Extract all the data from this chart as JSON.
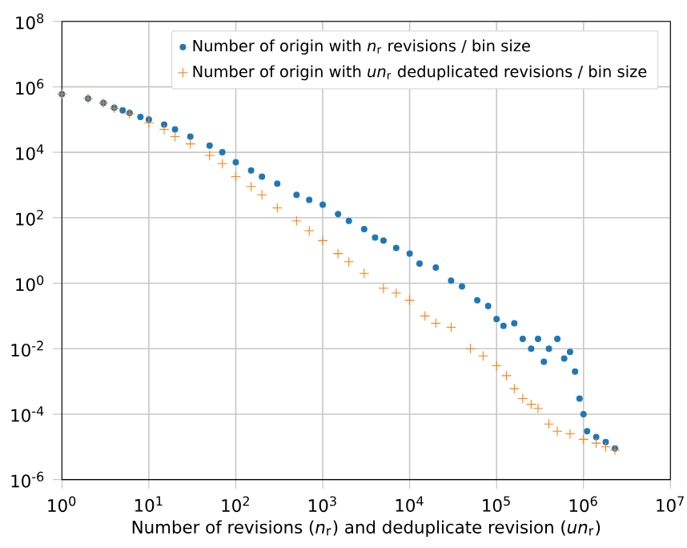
{
  "chart_data": {
    "type": "scatter",
    "log": "xy",
    "grid": true,
    "legend": "top right",
    "xlabel": "Number of revisions (*n*$_{r}$) and deduplicate revision (*un*$_{r}$)",
    "xlim": [
      1,
      10000000
    ],
    "ylim": [
      1e-06,
      100000000
    ],
    "xticks": [
      {
        "value": 1,
        "label": "10$^{0}$"
      },
      {
        "value": 10,
        "label": "10$^{1}$"
      },
      {
        "value": 100,
        "label": "10$^{2}$"
      },
      {
        "value": 1000,
        "label": "10$^{3}$"
      },
      {
        "value": 10000,
        "label": "10$^{4}$"
      },
      {
        "value": 100000,
        "label": "10$^{5}$"
      },
      {
        "value": 1000000,
        "label": "10$^{6}$"
      },
      {
        "value": 10000000,
        "label": "10$^{7}$"
      }
    ],
    "yticks": [
      {
        "value": 1e-06,
        "label": "10$^{-6}$"
      },
      {
        "value": 0.0001,
        "label": "10$^{-4}$"
      },
      {
        "value": 0.01,
        "label": "10$^{-2}$"
      },
      {
        "value": 1,
        "label": "10$^{0}$"
      },
      {
        "value": 100,
        "label": "10$^{2}$"
      },
      {
        "value": 10000,
        "label": "10$^{4}$"
      },
      {
        "value": 1000000,
        "label": "10$^{6}$"
      },
      {
        "value": 100000000,
        "label": "10$^{8}$"
      }
    ],
    "series": [
      {
        "name": "Number of origin with *n*$_{r}$ revisions / bin size",
        "color": "#1f77b4",
        "marker": "circle",
        "x": [
          1,
          2,
          3,
          4,
          5,
          6,
          8,
          10,
          15,
          20,
          30,
          50,
          70,
          100,
          150,
          200,
          300,
          500,
          700,
          1000,
          1500,
          2000,
          3000,
          4000,
          5000,
          7000,
          10000,
          13000,
          20000,
          30000,
          40000,
          60000,
          80000,
          100000,
          120000,
          160000,
          200000,
          250000,
          300000,
          350000,
          400000,
          500000,
          600000,
          700000,
          800000,
          900000,
          1000000,
          1100000,
          1400000,
          1800000,
          2300000
        ],
        "values": [
          600000,
          440000,
          320000,
          230000,
          190000,
          160000,
          120000,
          100000,
          70000,
          50000,
          30000,
          16000,
          10000,
          5000,
          2800,
          1800,
          1100,
          500,
          350,
          250,
          130,
          80,
          45,
          25,
          20,
          12,
          8,
          4,
          3,
          1.2,
          0.8,
          0.3,
          0.2,
          0.08,
          0.05,
          0.06,
          0.02,
          0.01,
          0.02,
          0.004,
          0.01,
          0.02,
          0.005,
          0.008,
          0.002,
          0.0003,
          0.0001,
          3e-05,
          2e-05,
          1.4e-05,
          9e-06
        ]
      },
      {
        "name": "Number of origin with *un*$_{r}$ deduplicated revisions / bin size",
        "color": "#ff7f0e",
        "marker": "cross",
        "x": [
          1,
          2,
          3,
          4,
          6,
          10,
          15,
          20,
          30,
          50,
          70,
          100,
          150,
          200,
          300,
          500,
          700,
          1000,
          1500,
          2000,
          3000,
          5000,
          7000,
          10000,
          15000,
          20000,
          30000,
          50000,
          70000,
          100000,
          130000,
          160000,
          200000,
          250000,
          300000,
          400000,
          500000,
          700000,
          1000000,
          1400000,
          1800000,
          2300000
        ],
        "values": [
          600000,
          440000,
          320000,
          220000,
          150000,
          80000,
          50000,
          30000,
          18000,
          8000,
          4500,
          1800,
          900,
          500,
          200,
          80,
          40,
          20,
          8,
          4.5,
          2,
          0.7,
          0.5,
          0.3,
          0.1,
          0.06,
          0.045,
          0.01,
          0.006,
          0.003,
          0.0015,
          0.0006,
          0.0003,
          0.0002,
          0.00015,
          5e-05,
          3e-05,
          2.5e-05,
          1.7e-05,
          1.3e-05,
          1e-05,
          8e-06
        ]
      }
    ]
  }
}
